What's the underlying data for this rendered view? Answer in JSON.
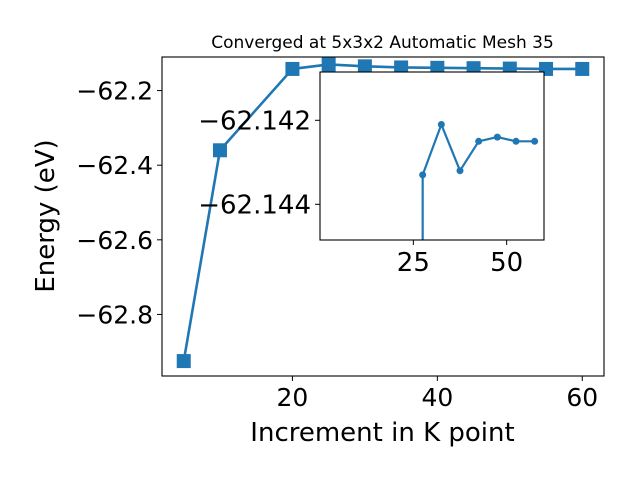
{
  "colors": {
    "series": "#1f77b4",
    "axis": "#000000",
    "background": "#ffffff"
  },
  "chart_data": [
    {
      "type": "line",
      "title": "Converged at 5x3x2 Automatic Mesh 35",
      "xlabel": "Increment in K point",
      "ylabel": "Energy (eV)",
      "xlim": [
        2,
        63
      ],
      "ylim": [
        -62.965,
        -62.11
      ],
      "y_inverted": true,
      "xticks": [
        20,
        40,
        60
      ],
      "xtick_labels": [
        "20",
        "40",
        "60"
      ],
      "yticks": [
        -62.2,
        -62.4,
        -62.6,
        -62.8
      ],
      "ytick_labels": [
        "−62.2",
        "−62.4",
        "−62.6",
        "−62.8"
      ],
      "grid": false,
      "marker": "square",
      "x": [
        5,
        10,
        20,
        25,
        30,
        35,
        40,
        45,
        50,
        55,
        60
      ],
      "y": [
        -62.925,
        -62.36,
        -62.142,
        -62.13,
        -62.135,
        -62.138,
        -62.139,
        -62.14,
        -62.141,
        -62.142,
        -62.142
      ]
    },
    {
      "type": "line",
      "inset": true,
      "xlim": [
        0,
        60
      ],
      "ylim": [
        -62.14485,
        -62.14085
      ],
      "y_inverted": true,
      "xticks": [
        25,
        50
      ],
      "xtick_labels": [
        "25",
        "50"
      ],
      "yticks": [
        -62.144,
        -62.142
      ],
      "ytick_labels": [
        "−62.144",
        "−62.142"
      ],
      "marker": "circle",
      "x": [
        27.5,
        27.5,
        32.5,
        37.5,
        42.5,
        47.5,
        52.5,
        57.5
      ],
      "y": [
        -62.1455,
        -62.1433,
        -62.1421,
        -62.1432,
        -62.1425,
        -62.1424,
        -62.1425,
        -62.1425
      ]
    }
  ]
}
